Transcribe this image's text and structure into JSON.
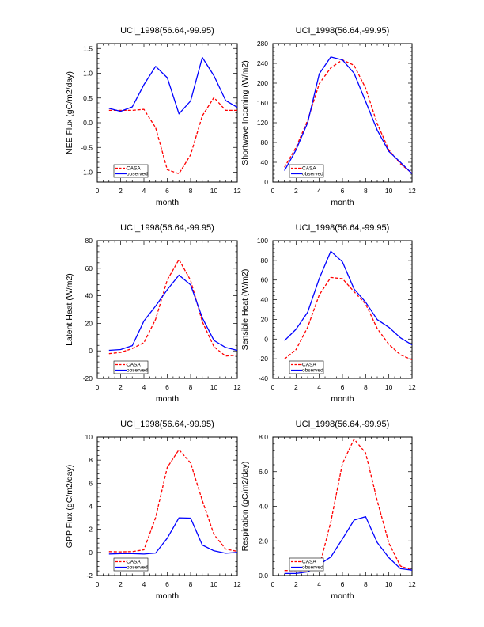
{
  "chart_data": [
    {
      "type": "line",
      "title": "UCI_1998(56.64,-99.95)",
      "xlabel": "month",
      "ylabel": "NEE Flux (gC/m2/day)",
      "xlim": [
        0,
        12
      ],
      "ylim": [
        -1.2,
        1.6
      ],
      "xticks": [
        "0",
        "2",
        "4",
        "6",
        "8",
        "10",
        "12"
      ],
      "yticks": [
        -1.0,
        -0.5,
        0.0,
        0.5,
        1.0,
        1.5
      ],
      "ytick_labels": [
        "-1.0",
        "-0.5",
        "0.0",
        "0.5",
        "1.0",
        "1.5"
      ],
      "legend": "bottom-left",
      "x": [
        1,
        2,
        3,
        4,
        5,
        6,
        7,
        8,
        9,
        10,
        11,
        12
      ],
      "series": [
        {
          "name": "CASA",
          "color": "#ff0000",
          "style": "dashed",
          "values": [
            0.25,
            0.25,
            0.25,
            0.27,
            -0.1,
            -0.95,
            -1.03,
            -0.65,
            0.14,
            0.51,
            0.25,
            0.25
          ]
        },
        {
          "name": "observed",
          "color": "#0000ff",
          "style": "solid",
          "values": [
            0.29,
            0.23,
            0.32,
            0.77,
            1.14,
            0.91,
            0.18,
            0.44,
            1.32,
            0.95,
            0.45,
            0.31
          ]
        }
      ]
    },
    {
      "type": "line",
      "title": "UCI_1998(56.64,-99.95)",
      "xlabel": "month",
      "ylabel": "Shortwave Incoming (W/m2)",
      "xlim": [
        0,
        12
      ],
      "ylim": [
        0,
        280
      ],
      "xticks": [
        "0",
        "2",
        "4",
        "6",
        "8",
        "10",
        "12"
      ],
      "yticks": [
        0,
        40,
        80,
        120,
        160,
        200,
        240,
        280
      ],
      "ytick_labels": [
        "0",
        "40",
        "80",
        "120",
        "160",
        "200",
        "240",
        "280"
      ],
      "legend": "bottom-left",
      "x": [
        1,
        2,
        3,
        4,
        5,
        6,
        7,
        8,
        9,
        10,
        11,
        12
      ],
      "series": [
        {
          "name": "CASA",
          "color": "#ff0000",
          "style": "dashed",
          "values": [
            30,
            70,
            125,
            199,
            231,
            247,
            236,
            190,
            118,
            65,
            37,
            18
          ]
        },
        {
          "name": "observed",
          "color": "#0000ff",
          "style": "solid",
          "values": [
            23,
            65,
            120,
            219,
            253,
            247,
            220,
            163,
            105,
            62,
            40,
            17
          ]
        }
      ]
    },
    {
      "type": "line",
      "title": "UCI_1998(56.64,-99.95)",
      "xlabel": "month",
      "ylabel": "Latent Heat (W/m2)",
      "xlim": [
        0,
        12
      ],
      "ylim": [
        -20,
        80
      ],
      "xticks": [
        "0",
        "2",
        "4",
        "6",
        "8",
        "10",
        "12"
      ],
      "yticks": [
        -20,
        0,
        20,
        40,
        60,
        80
      ],
      "ytick_labels": [
        "-20",
        "0",
        "20",
        "40",
        "60",
        "80"
      ],
      "legend": "bottom-left",
      "x": [
        1,
        2,
        3,
        4,
        5,
        6,
        7,
        8,
        9,
        10,
        11,
        12
      ],
      "series": [
        {
          "name": "CASA",
          "color": "#ff0000",
          "style": "dashed",
          "values": [
            -2.0,
            -1.1,
            1.7,
            6.0,
            23.0,
            51.5,
            66.3,
            51.2,
            21.2,
            3.0,
            -3.8,
            -3.0
          ]
        },
        {
          "name": "observed",
          "color": "#0000ff",
          "style": "solid",
          "values": [
            0.4,
            1.0,
            3.8,
            21.7,
            32.6,
            44.4,
            55.0,
            48.0,
            24.0,
            7.6,
            2.5,
            0.4
          ]
        }
      ]
    },
    {
      "type": "line",
      "title": "UCI_1998(56.64,-99.95)",
      "xlabel": "month",
      "ylabel": "Sensible Heat (W/m2)",
      "xlim": [
        0,
        12
      ],
      "ylim": [
        -40,
        100
      ],
      "xticks": [
        "0",
        "2",
        "4",
        "6",
        "8",
        "10",
        "12"
      ],
      "yticks": [
        -40,
        -20,
        0,
        20,
        40,
        60,
        80,
        100
      ],
      "ytick_labels": [
        "-40",
        "-20",
        "0",
        "20",
        "40",
        "60",
        "80",
        "100"
      ],
      "legend": "bottom-left",
      "x": [
        1,
        2,
        3,
        4,
        5,
        6,
        7,
        8,
        9,
        10,
        11,
        12
      ],
      "series": [
        {
          "name": "CASA",
          "color": "#ff0000",
          "style": "dashed",
          "values": [
            -20.3,
            -10.7,
            12.0,
            45.0,
            62.7,
            61.4,
            48.2,
            35.6,
            10.7,
            -5.4,
            -16.0,
            -21.0
          ]
        },
        {
          "name": "observed",
          "color": "#0000ff",
          "style": "solid",
          "values": [
            -1.6,
            10.0,
            27.3,
            61.6,
            89.3,
            78.5,
            50.9,
            37.5,
            19.8,
            12.0,
            1.3,
            -5.9
          ]
        }
      ]
    },
    {
      "type": "line",
      "title": "UCI_1998(56.64,-99.95)",
      "xlabel": "month",
      "ylabel": "GPP Flux (gC/m2/day)",
      "xlim": [
        0,
        12
      ],
      "ylim": [
        -2,
        10
      ],
      "xticks": [
        "0",
        "2",
        "4",
        "6",
        "8",
        "10",
        "12"
      ],
      "yticks": [
        -2,
        0,
        2,
        4,
        6,
        8,
        10
      ],
      "ytick_labels": [
        "-2",
        "0",
        "2",
        "4",
        "6",
        "8",
        "10"
      ],
      "legend": "bottom-left",
      "x": [
        1,
        2,
        3,
        4,
        5,
        6,
        7,
        8,
        9,
        10,
        11,
        12
      ],
      "series": [
        {
          "name": "CASA",
          "color": "#ff0000",
          "style": "dashed",
          "values": [
            0.07,
            0.05,
            0.07,
            0.23,
            3.03,
            7.37,
            8.9,
            7.75,
            4.5,
            1.56,
            0.3,
            0.09
          ]
        },
        {
          "name": "observed",
          "color": "#0000ff",
          "style": "solid",
          "values": [
            -0.14,
            -0.1,
            -0.1,
            -0.14,
            -0.05,
            1.24,
            3.0,
            2.97,
            0.64,
            0.14,
            -0.07,
            0.0
          ]
        }
      ]
    },
    {
      "type": "line",
      "title": "UCI_1998(56.64,-99.95)",
      "xlabel": "month",
      "ylabel": "Respiration (gC/m2/day)",
      "xlim": [
        0,
        12
      ],
      "ylim": [
        0,
        8
      ],
      "xticks": [
        "0",
        "2",
        "4",
        "6",
        "8",
        "10",
        "12"
      ],
      "yticks": [
        0,
        2,
        4,
        6,
        8
      ],
      "ytick_labels": [
        "0.0",
        "2.0",
        "4.0",
        "6.0",
        "8.0"
      ],
      "legend": "bottom-left",
      "x": [
        1,
        2,
        3,
        4,
        5,
        6,
        7,
        8,
        9,
        10,
        11,
        12
      ],
      "series": [
        {
          "name": "CASA",
          "color": "#ff0000",
          "style": "dashed",
          "values": [
            0.29,
            0.29,
            0.29,
            0.49,
            3.1,
            6.47,
            7.88,
            7.08,
            4.32,
            1.87,
            0.55,
            0.31
          ]
        },
        {
          "name": "observed",
          "color": "#0000ff",
          "style": "solid",
          "values": [
            0.12,
            0.12,
            0.21,
            0.63,
            1.07,
            2.11,
            3.2,
            3.4,
            1.9,
            1.03,
            0.4,
            0.31
          ]
        }
      ]
    }
  ]
}
